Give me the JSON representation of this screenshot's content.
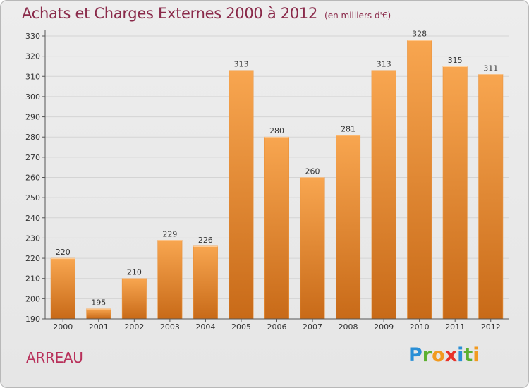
{
  "header": {
    "title": "Achats et Charges Externes 2000 à 2012",
    "unit": "(en milliers d'€)"
  },
  "commune": "ARREAU",
  "logo": {
    "letters": [
      {
        "ch": "P",
        "color": "#2a8fd6"
      },
      {
        "ch": "r",
        "color": "#5cb030"
      },
      {
        "ch": "o",
        "color": "#f29a1f"
      },
      {
        "ch": "x",
        "color": "#e8332a"
      },
      {
        "ch": "i",
        "color": "#2a8fd6"
      },
      {
        "ch": "t",
        "color": "#5cb030"
      },
      {
        "ch": "i",
        "color": "#f29a1f"
      }
    ]
  },
  "colors": {
    "bar_top": "#f8a650",
    "bar_bottom": "#c86a18",
    "grid": "#d4d4d4",
    "axis": "#555555",
    "label": "#333333"
  },
  "chart_data": {
    "type": "bar",
    "categories": [
      "2000",
      "2001",
      "2002",
      "2003",
      "2004",
      "2005",
      "2006",
      "2007",
      "2008",
      "2009",
      "2010",
      "2011",
      "2012"
    ],
    "values": [
      220,
      195,
      210,
      229,
      226,
      313,
      280,
      260,
      281,
      313,
      328,
      315,
      311
    ],
    "title": "Achats et Charges Externes 2000 à 2012",
    "subtitle": "(en milliers d'€)",
    "xlabel": "",
    "ylabel": "",
    "ylim": [
      190,
      330
    ],
    "yticks": [
      190,
      200,
      210,
      220,
      230,
      240,
      250,
      260,
      270,
      280,
      290,
      300,
      310,
      320,
      330
    ],
    "grid": true,
    "data_labels": true
  }
}
